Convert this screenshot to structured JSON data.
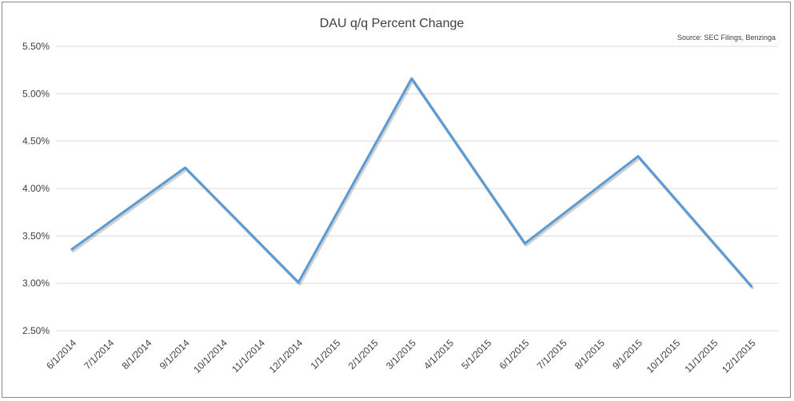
{
  "chart_data": {
    "type": "line",
    "title": "DAU q/q Percent Change",
    "source": "Source: SEC Filings, Benzinga",
    "xlabel": "",
    "ylabel": "",
    "ylim": [
      2.5,
      5.5
    ],
    "y_ticks": [
      "2.50%",
      "3.00%",
      "3.50%",
      "4.00%",
      "4.50%",
      "5.00%",
      "5.50%"
    ],
    "grid": true,
    "legend": "none",
    "line_color": "#5b9bd5",
    "categories": [
      "6/1/2014",
      "7/1/2014",
      "8/1/2014",
      "9/1/2014",
      "10/1/2014",
      "11/1/2014",
      "12/1/2014",
      "1/1/2015",
      "2/1/2015",
      "3/1/2015",
      "4/1/2015",
      "5/1/2015",
      "6/1/2015",
      "7/1/2015",
      "8/1/2015",
      "9/1/2015",
      "10/1/2015",
      "11/1/2015",
      "12/1/2015"
    ],
    "series": [
      {
        "points": [
          {
            "x": "6/1/2014",
            "y": 3.36
          },
          {
            "x": "9/1/2014",
            "y": 4.22
          },
          {
            "x": "12/1/2014",
            "y": 3.01
          },
          {
            "x": "3/1/2015",
            "y": 5.16
          },
          {
            "x": "6/1/2015",
            "y": 3.42
          },
          {
            "x": "9/1/2015",
            "y": 4.34
          },
          {
            "x": "12/1/2015",
            "y": 2.97
          }
        ]
      }
    ]
  }
}
